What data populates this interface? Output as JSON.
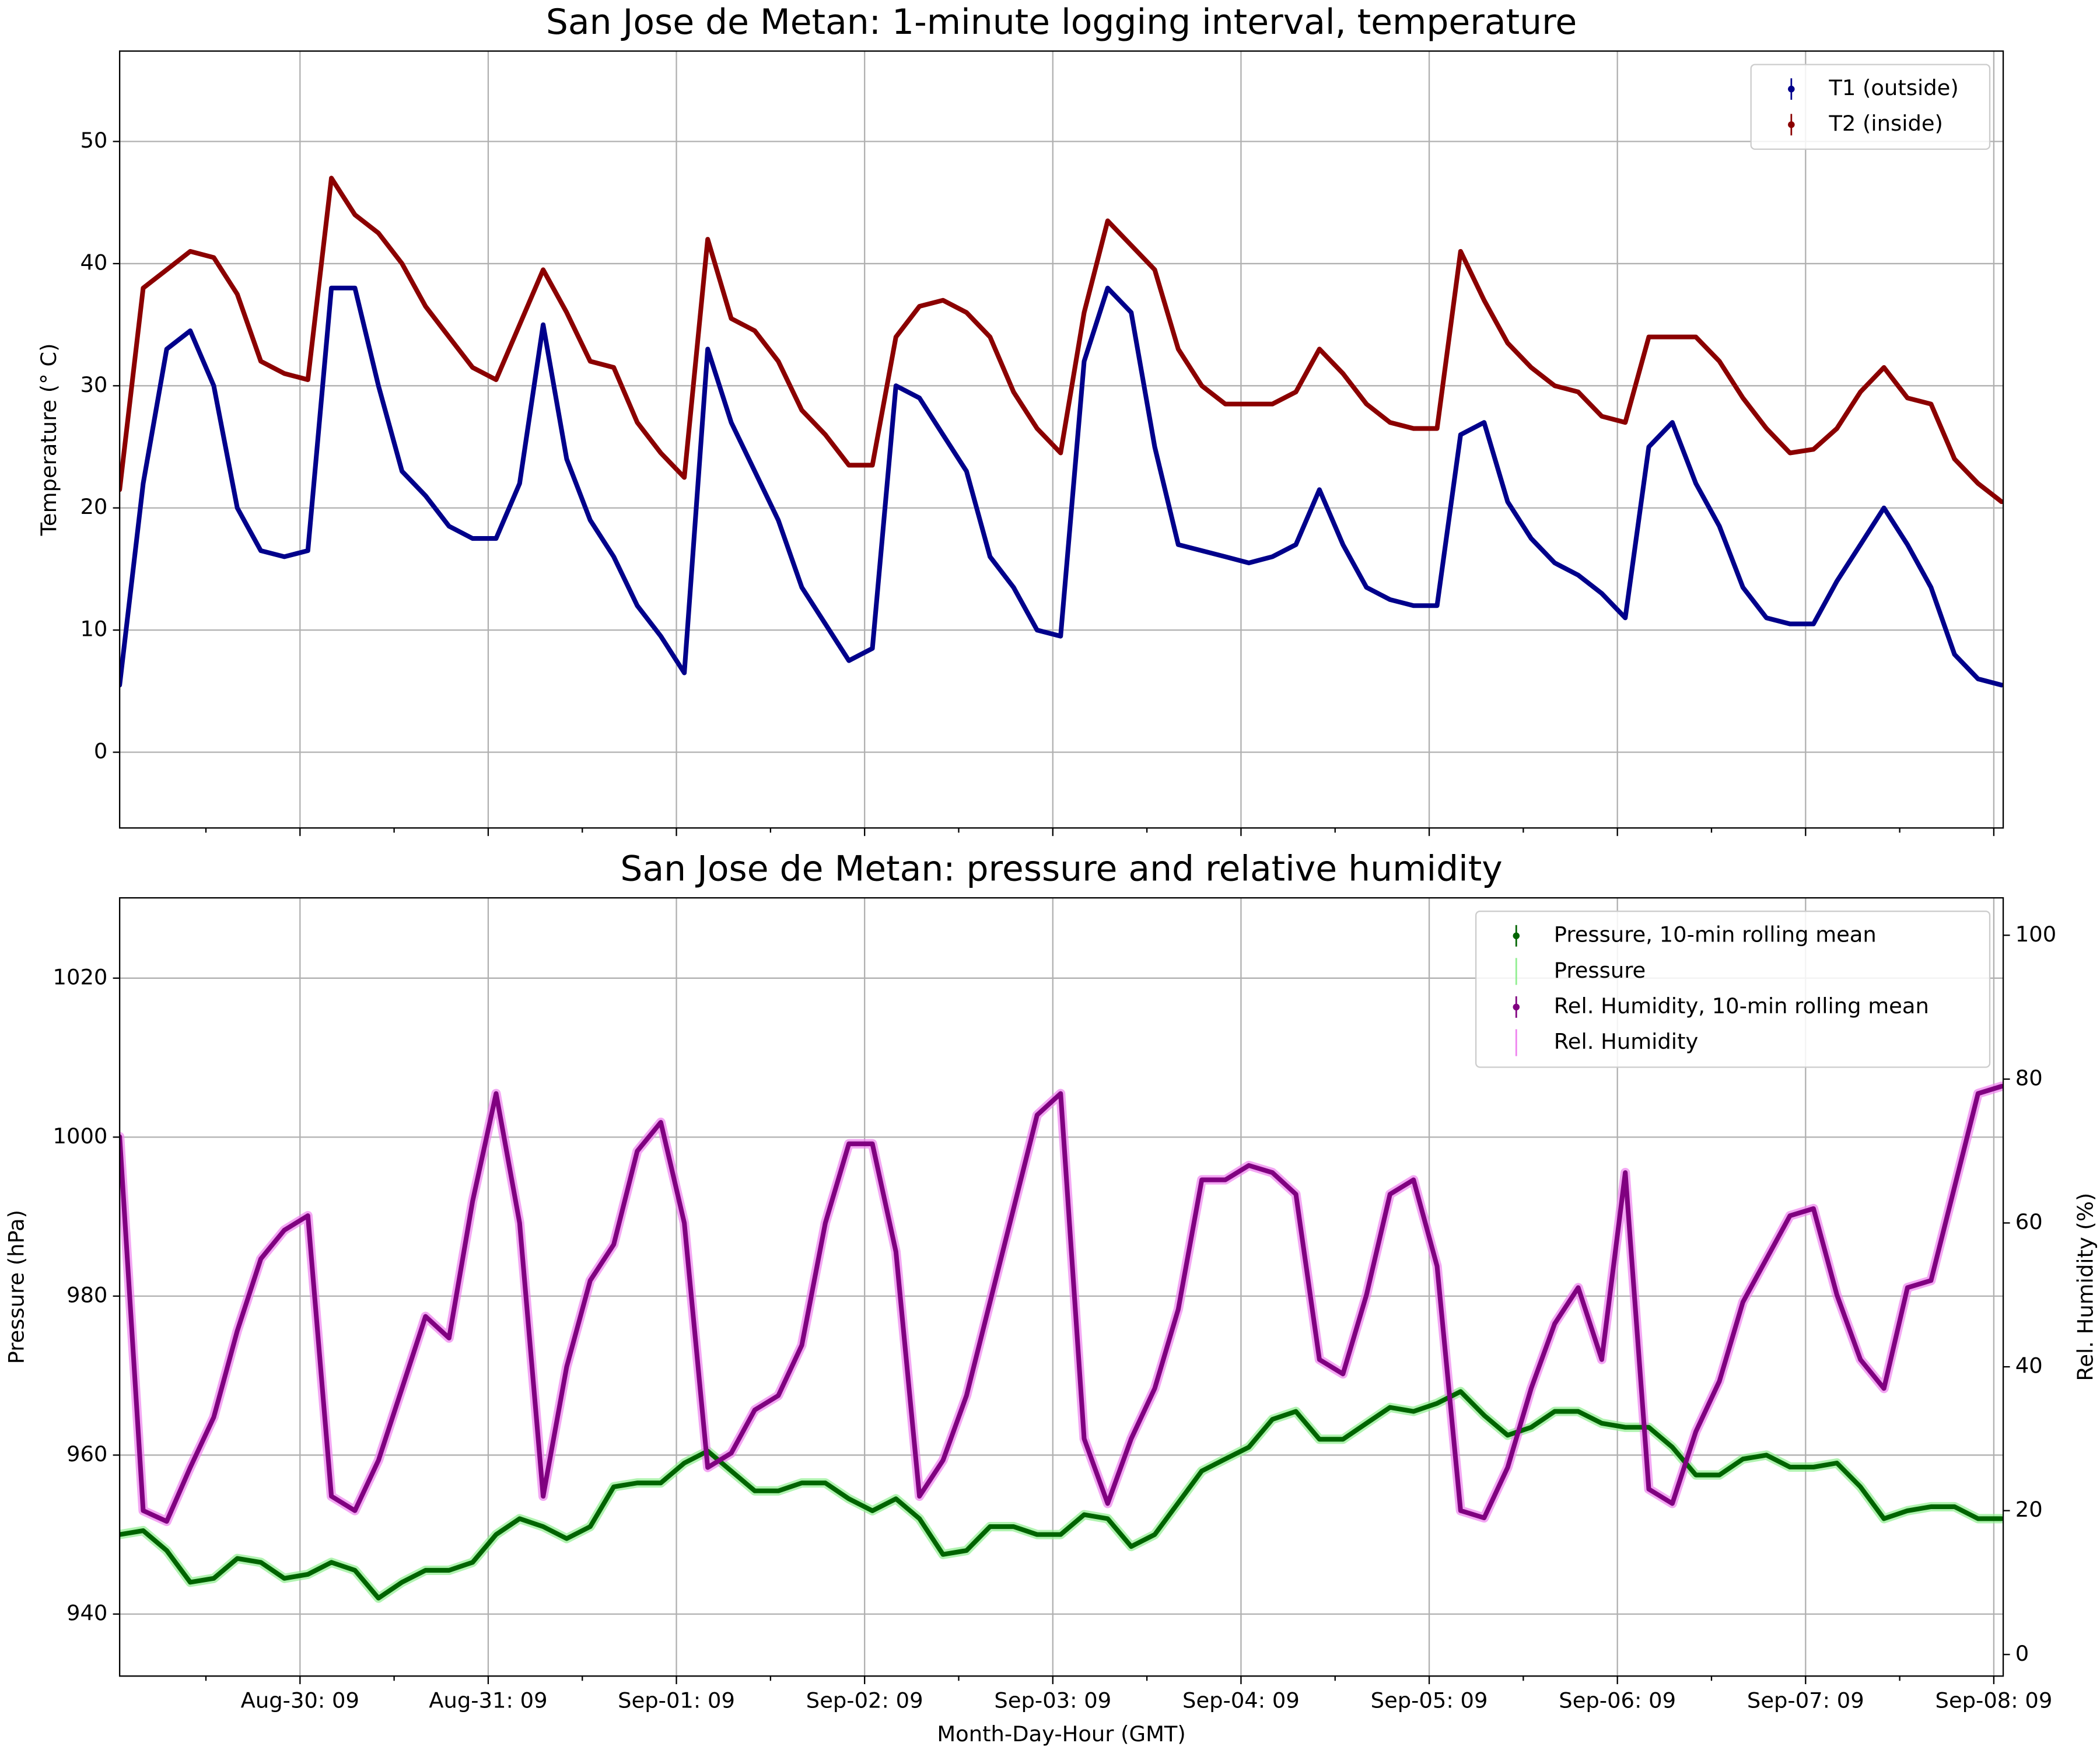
{
  "chart_data": [
    {
      "type": "line",
      "title": "San Jose de Metan: 1-minute logging interval, temperature",
      "ylabel": "Temperature (° C)",
      "x": [
        -23,
        -20,
        -17,
        -14,
        -11,
        -8,
        -5,
        -2,
        1,
        4,
        7,
        10,
        13,
        16,
        19,
        22,
        25,
        28,
        31,
        34,
        37,
        40,
        43,
        46,
        49,
        52,
        55,
        58,
        61,
        64,
        67,
        70,
        73,
        76,
        79,
        82,
        85,
        88,
        91,
        94,
        97,
        100,
        103,
        106,
        109,
        112,
        115,
        118,
        121,
        124,
        127,
        130,
        133,
        136,
        139,
        142,
        145,
        148,
        151,
        154,
        157,
        160,
        163,
        166,
        169,
        172,
        175,
        178,
        181,
        184,
        187,
        190,
        193,
        196,
        199,
        202,
        205,
        208,
        211,
        214,
        217
      ],
      "xlim": [
        -23,
        217.2
      ],
      "xticks": [
        0,
        24,
        48,
        72,
        96,
        120,
        144,
        168,
        192,
        216
      ],
      "xminorticks": [
        -12,
        12,
        36,
        60,
        84,
        108,
        132,
        156,
        180,
        204
      ],
      "ylim": [
        -6.2,
        57.4
      ],
      "yticks": [
        0,
        10,
        20,
        30,
        40,
        50
      ],
      "grid": true,
      "legend": "upper right",
      "series": [
        {
          "name": "T1 (outside)",
          "color": "#00008b",
          "style": "dots",
          "values": [
            5.5,
            22,
            33,
            34.5,
            30,
            20,
            16.5,
            16,
            16.5,
            38,
            38,
            30,
            23,
            21,
            18.5,
            17.5,
            17.5,
            22,
            35,
            24,
            19,
            16,
            12,
            9.5,
            6.5,
            33,
            27,
            23,
            19,
            13.5,
            10.5,
            7.5,
            8.5,
            30,
            29,
            26,
            23,
            16,
            13.5,
            10,
            9.5,
            32,
            38,
            36,
            25,
            17,
            16.5,
            16,
            15.5,
            16,
            17,
            21.5,
            17,
            13.5,
            12.5,
            12,
            12,
            26,
            27,
            20.5,
            17.5,
            15.5,
            14.5,
            13,
            11,
            25,
            27,
            22,
            18.5,
            13.5,
            11,
            10.5,
            10.5,
            14,
            17,
            20,
            17,
            13.5,
            8,
            6,
            5.5
          ]
        },
        {
          "name": "T2 (inside)",
          "color": "#8b0000",
          "style": "dots",
          "values": [
            21.5,
            38,
            39.5,
            41,
            40.5,
            37.5,
            32,
            31,
            30.5,
            47,
            44,
            42.5,
            40,
            36.5,
            34,
            31.5,
            30.5,
            35,
            39.5,
            36,
            32,
            31.5,
            27,
            24.5,
            22.5,
            42,
            35.5,
            34.5,
            32,
            28,
            26,
            23.5,
            23.5,
            34,
            36.5,
            37,
            36,
            34,
            29.5,
            26.5,
            24.5,
            36,
            43.5,
            41.5,
            39.5,
            33,
            30,
            28.5,
            28.5,
            28.5,
            29.5,
            33,
            31,
            28.5,
            27,
            26.5,
            26.5,
            41,
            37,
            33.5,
            31.5,
            30,
            29.5,
            27.5,
            27,
            34,
            34,
            34,
            32,
            29,
            26.5,
            24.5,
            24.8,
            26.5,
            29.5,
            31.5,
            29,
            28.5,
            24,
            22,
            20.5
          ]
        }
      ]
    },
    {
      "type": "line",
      "title": "San Jose de Metan: pressure and relative humidity",
      "xlabel": "Month-Day-Hour (GMT)",
      "ylabel": "Pressure (hPa)",
      "y2label": "Rel. Humidity (%)",
      "x": [
        -23,
        -20,
        -17,
        -14,
        -11,
        -8,
        -5,
        -2,
        1,
        4,
        7,
        10,
        13,
        16,
        19,
        22,
        25,
        28,
        31,
        34,
        37,
        40,
        43,
        46,
        49,
        52,
        55,
        58,
        61,
        64,
        67,
        70,
        73,
        76,
        79,
        82,
        85,
        88,
        91,
        94,
        97,
        100,
        103,
        106,
        109,
        112,
        115,
        118,
        121,
        124,
        127,
        130,
        133,
        136,
        139,
        142,
        145,
        148,
        151,
        154,
        157,
        160,
        163,
        166,
        169,
        172,
        175,
        178,
        181,
        184,
        187,
        190,
        193,
        196,
        199,
        202,
        205,
        208,
        211,
        214,
        217
      ],
      "xlim": [
        -23,
        217.2
      ],
      "xticks": [
        {
          "value": 0,
          "label": "Aug-30: 09"
        },
        {
          "value": 24,
          "label": "Aug-31: 09"
        },
        {
          "value": 48,
          "label": "Sep-01: 09"
        },
        {
          "value": 72,
          "label": "Sep-02: 09"
        },
        {
          "value": 96,
          "label": "Sep-03: 09"
        },
        {
          "value": 120,
          "label": "Sep-04: 09"
        },
        {
          "value": 144,
          "label": "Sep-05: 09"
        },
        {
          "value": 168,
          "label": "Sep-06: 09"
        },
        {
          "value": 192,
          "label": "Sep-07: 09"
        },
        {
          "value": 216,
          "label": "Sep-08: 09"
        }
      ],
      "xminorticks": [
        -12,
        12,
        36,
        60,
        84,
        108,
        132,
        156,
        180,
        204
      ],
      "ylim": [
        932.2,
        1030.1
      ],
      "yticks": [
        940,
        960,
        980,
        1000,
        1020
      ],
      "y2lim": [
        -3,
        105.2
      ],
      "y2ticks": [
        0,
        20,
        40,
        60,
        80,
        100
      ],
      "grid": true,
      "legend": "upper right",
      "series": [
        {
          "name": "Pressure, 10-min rolling mean",
          "color": "#006400",
          "style": "dots",
          "values": [
            950,
            950.5,
            948,
            944,
            944.5,
            947,
            946.5,
            944.5,
            945,
            946.5,
            945.5,
            942,
            944,
            945.5,
            945.5,
            946.5,
            950,
            952,
            951,
            949.5,
            951,
            956,
            956.5,
            956.5,
            959,
            960.5,
            958,
            955.5,
            955.5,
            956.5,
            956.5,
            954.5,
            953,
            954.5,
            952,
            947.5,
            948,
            951,
            951,
            950,
            950,
            952.5,
            952,
            948.5,
            950,
            954,
            958,
            959.5,
            961,
            964.5,
            965.5,
            962,
            962,
            964,
            966,
            965.5,
            966.5,
            968,
            965,
            962.5,
            963.5,
            965.5,
            965.5,
            964,
            963.5,
            963.5,
            961,
            957.5,
            957.5,
            959.5,
            960,
            958.5,
            958.5,
            959,
            956,
            952,
            953,
            953.5,
            953.5,
            952,
            952
          ]
        },
        {
          "name": "Pressure",
          "color": "#90ee90",
          "style": "errorbar",
          "values": [
            950,
            950.5,
            948,
            944,
            944.5,
            947,
            946.5,
            944.5,
            945,
            946.5,
            945.5,
            942,
            944,
            945.5,
            945.5,
            946.5,
            950,
            952,
            951,
            949.5,
            951,
            956,
            956.5,
            956.5,
            959,
            960.5,
            958,
            955.5,
            955.5,
            956.5,
            956.5,
            954.5,
            953,
            954.5,
            952,
            947.5,
            948,
            951,
            951,
            950,
            950,
            952.5,
            952,
            948.5,
            950,
            954,
            958,
            959.5,
            961,
            964.5,
            965.5,
            962,
            962,
            964,
            966,
            965.5,
            966.5,
            968,
            965,
            962.5,
            963.5,
            965.5,
            965.5,
            964,
            963.5,
            963.5,
            961,
            957.5,
            957.5,
            959.5,
            960,
            958.5,
            958.5,
            959,
            956,
            952,
            953,
            953.5,
            953.5,
            952,
            952
          ]
        },
        {
          "name": "Rel. Humidity, 10-min rolling mean",
          "color": "#800080",
          "style": "dots",
          "axis": "y2",
          "values": [
            72,
            20,
            18.5,
            26,
            33,
            45,
            55,
            59,
            61,
            22,
            20,
            27,
            37,
            47,
            44,
            63,
            78,
            60,
            22,
            40,
            52,
            57,
            70,
            74,
            60,
            26,
            28,
            34,
            36,
            43,
            60,
            71,
            71,
            56,
            22,
            27,
            36,
            49,
            62,
            75,
            78,
            30,
            21,
            30,
            37,
            48,
            66,
            66,
            68,
            67,
            64,
            41,
            39,
            50,
            64,
            66,
            54,
            20,
            19,
            26,
            37,
            46,
            51,
            41,
            67,
            23,
            21,
            31,
            38,
            49,
            55,
            61,
            62,
            50,
            41,
            37,
            51,
            52,
            65,
            78,
            79
          ]
        },
        {
          "name": "Rel. Humidity",
          "color": "#ee82ee",
          "style": "errorbar",
          "axis": "y2",
          "values": [
            72,
            20,
            18.5,
            26,
            33,
            45,
            55,
            59,
            61,
            22,
            20,
            27,
            37,
            47,
            44,
            63,
            78,
            60,
            22,
            40,
            52,
            57,
            70,
            74,
            60,
            26,
            28,
            34,
            36,
            43,
            60,
            71,
            71,
            56,
            22,
            27,
            36,
            49,
            62,
            75,
            78,
            30,
            21,
            30,
            37,
            48,
            66,
            66,
            68,
            67,
            64,
            41,
            39,
            50,
            64,
            66,
            54,
            20,
            19,
            26,
            37,
            46,
            51,
            41,
            67,
            23,
            21,
            31,
            38,
            49,
            55,
            61,
            62,
            50,
            41,
            37,
            51,
            52,
            65,
            78,
            79
          ]
        }
      ]
    }
  ]
}
